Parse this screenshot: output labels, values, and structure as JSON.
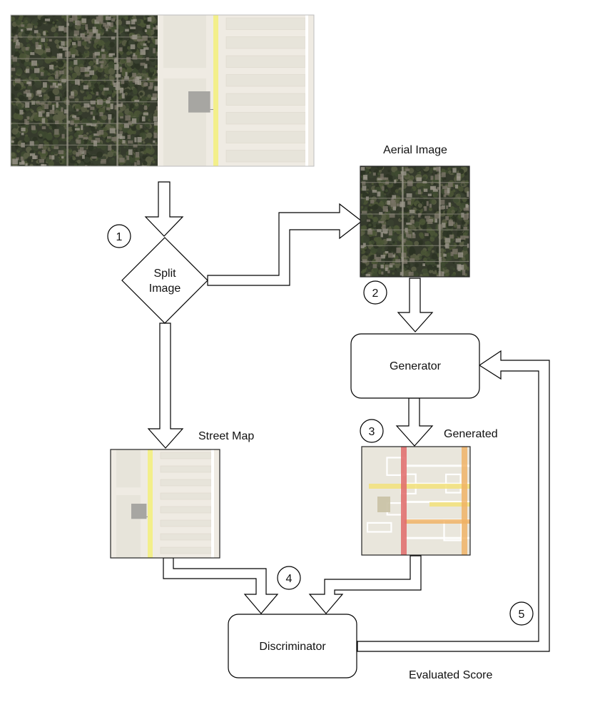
{
  "labels": {
    "aerial_image": "Aerial Image",
    "street_map": "Street Map",
    "generated": "Generated",
    "evaluated_score": "Evaluated Score"
  },
  "nodes": {
    "split_line1": "Split",
    "split_line2": "Image",
    "generator": "Generator",
    "discriminator": "Discriminator"
  },
  "steps": [
    "1",
    "2",
    "3",
    "4",
    "5"
  ],
  "colors": {
    "aerial_dark": "#2f3328",
    "aerial_tree": "#3e4a30",
    "aerial_roof": "#7a7468",
    "map_bg": "#efebe3",
    "map_block": "#e7e4da",
    "map_main_road": "#f3ef8a",
    "map_building": "#a7a6a2",
    "generated_bg": "#e9e6dc",
    "generated_red": "#e06a6a",
    "generated_orange": "#f0b060",
    "generated_yellow": "#f2e07a"
  }
}
